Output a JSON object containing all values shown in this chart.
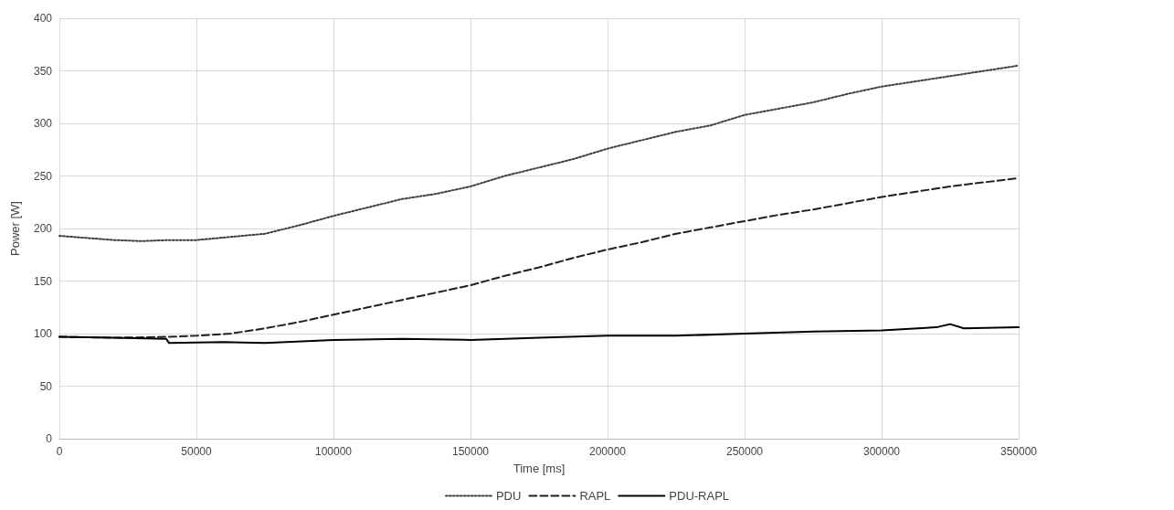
{
  "chart_data": {
    "type": "line",
    "xlabel": "Time [ms]",
    "ylabel": "Power [W]",
    "xlim": [
      0,
      350000
    ],
    "xticks": [
      0,
      50000,
      100000,
      150000,
      200000,
      250000,
      300000,
      350000
    ],
    "ylim": [
      0,
      400
    ],
    "yticks": [
      0,
      50,
      100,
      150,
      200,
      250,
      300,
      350,
      400
    ],
    "grid": true,
    "legend": "bottom",
    "marker": "none",
    "series": [
      {
        "name": "PDU",
        "color": "#404040",
        "line_style": "dotted",
        "x": [
          0,
          10000,
          20000,
          30000,
          40000,
          50000,
          62500,
          75000,
          87500,
          100000,
          112500,
          125000,
          137500,
          150000,
          162500,
          175000,
          187500,
          200000,
          212500,
          225000,
          237500,
          250000,
          262500,
          275000,
          287500,
          300000,
          312500,
          325000,
          337500,
          350000
        ],
        "values": [
          193,
          191,
          189,
          188,
          189,
          189,
          192,
          195,
          203,
          212,
          220,
          228,
          233,
          240,
          250,
          258,
          266,
          276,
          284,
          292,
          298,
          308,
          314,
          320,
          328,
          335,
          340,
          345,
          350,
          355
        ]
      },
      {
        "name": "RAPL",
        "color": "#202020",
        "line_style": "dashed",
        "x": [
          0,
          20000,
          40000,
          50000,
          62500,
          75000,
          87500,
          100000,
          112500,
          125000,
          137500,
          150000,
          162500,
          175000,
          187500,
          200000,
          212500,
          225000,
          237500,
          250000,
          262500,
          275000,
          287500,
          300000,
          312500,
          325000,
          337500,
          350000
        ],
        "values": [
          97,
          96,
          97,
          98,
          100,
          105,
          111,
          118,
          125,
          132,
          139,
          146,
          155,
          163,
          172,
          180,
          187,
          195,
          201,
          207,
          213,
          218,
          224,
          230,
          235,
          240,
          244,
          248
        ]
      },
      {
        "name": "PDU-RAPL",
        "color": "#000000",
        "line_style": "solid",
        "x": [
          0,
          20000,
          39000,
          40000,
          60000,
          75000,
          100000,
          125000,
          150000,
          175000,
          200000,
          225000,
          250000,
          275000,
          300000,
          320000,
          325000,
          330000,
          350000
        ],
        "values": [
          97,
          96,
          95,
          91,
          92,
          91,
          94,
          95,
          94,
          96,
          98,
          98,
          100,
          102,
          103,
          106,
          109,
          105,
          106
        ]
      }
    ]
  }
}
